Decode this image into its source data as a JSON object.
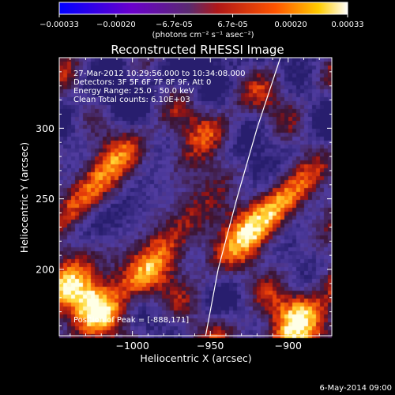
{
  "colorbar": {
    "range": [
      -0.00033,
      0.00033
    ],
    "ticks": [
      "-0.00033",
      "-0.00020",
      "-6.7e-05",
      "6.7e-05",
      "0.00020",
      "0.00033"
    ],
    "units": "(photons cm⁻² s⁻¹ asec⁻²)",
    "colors": [
      "#0000ff",
      "#6a00cc",
      "#8a2060",
      "#ff2000",
      "#ffcc00",
      "#ffffff"
    ]
  },
  "chart_data": {
    "type": "heatmap",
    "title": "Reconstructed RHESSI Image",
    "xlabel": "Heliocentric X (arcsec)",
    "ylabel": "Heliocentric Y (arcsec)",
    "xlim": [
      -1047,
      -872
    ],
    "ylim": [
      153,
      350
    ],
    "x_ticks": [
      -1000,
      -950,
      -900
    ],
    "x_tick_labels": [
      "−1000",
      "−950",
      "−900"
    ],
    "y_ticks": [
      200,
      250,
      300
    ],
    "y_tick_labels": [
      "200",
      "250",
      "300"
    ],
    "limb_curve": [
      {
        "x": -953,
        "y": 153
      },
      {
        "x": -945,
        "y": 200
      },
      {
        "x": -933,
        "y": 250
      },
      {
        "x": -920,
        "y": 300
      },
      {
        "x": -905,
        "y": 350
      }
    ],
    "annotations": [
      "27-Mar-2012 10:29:56.000 to 10:34:08.000",
      "Detectors: 3F 5F 6F 7F 8F 9F, Att 0",
      "Energy Range: 25.0 - 50.0 keV",
      "Clean     Total counts: 6.10E+03"
    ],
    "peak_label": "Position of Peak = [-888,171]",
    "peak_position": {
      "x": -888,
      "y": 171
    }
  },
  "footer": {
    "date": "6-May-2014 09:00"
  }
}
